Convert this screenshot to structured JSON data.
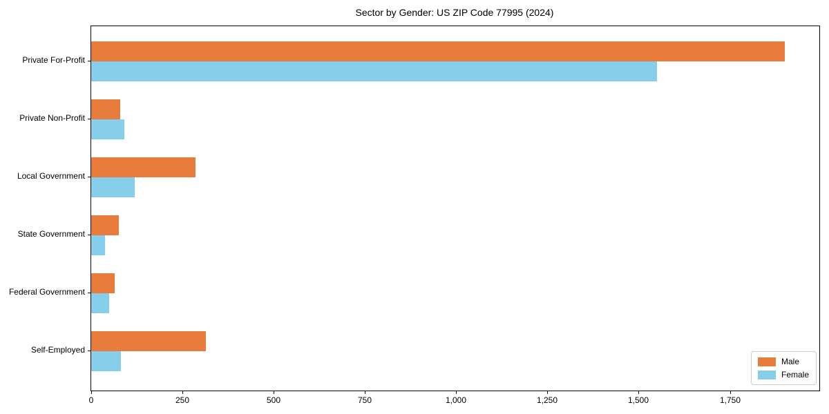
{
  "chart_data": {
    "type": "bar",
    "orientation": "horizontal",
    "title": "Sector by Gender: US ZIP Code 77995 (2024)",
    "categories": [
      "Private For-Profit",
      "Private Non-Profit",
      "Local Government",
      "State Government",
      "Federal Government",
      "Self-Employed"
    ],
    "series": [
      {
        "name": "Male",
        "color": "#e87c3c",
        "values": [
          1900,
          80,
          285,
          75,
          65,
          315
        ]
      },
      {
        "name": "Female",
        "color": "#87ceeb",
        "values": [
          1550,
          90,
          120,
          38,
          50,
          82
        ]
      }
    ],
    "xlabel": "",
    "ylabel": "",
    "xlim": [
      0,
      1995
    ],
    "xticks": [
      0,
      250,
      500,
      750,
      1000,
      1250,
      1500,
      1750
    ],
    "xtick_labels": [
      "0",
      "250",
      "500",
      "750",
      "1,000",
      "1,250",
      "1,500",
      "1,750"
    ],
    "grid": false,
    "legend": {
      "position": "lower right",
      "entries": [
        "Male",
        "Female"
      ]
    }
  }
}
